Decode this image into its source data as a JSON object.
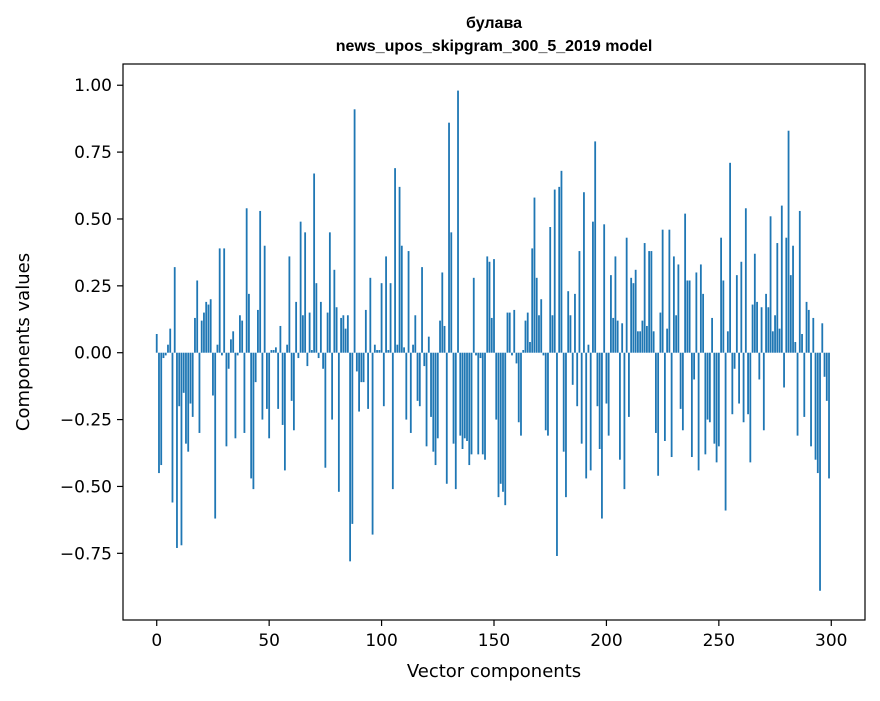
{
  "chart_data": {
    "type": "bar",
    "title": "булава",
    "subtitle": "news_upos_skipgram_300_5_2019 model",
    "xlabel": "Vector components",
    "ylabel": "Components values",
    "xlim": [
      -15,
      315
    ],
    "ylim": [
      -0.9993,
      1.0794
    ],
    "xticks": [
      0,
      50,
      100,
      150,
      200,
      250,
      300
    ],
    "yticks": [
      -0.75,
      -0.5,
      -0.25,
      0.0,
      0.25,
      0.5,
      0.75,
      1.0
    ],
    "xtick_labels": [
      "0",
      "50",
      "100",
      "150",
      "200",
      "250",
      "300"
    ],
    "ytick_labels": [
      "−0.75",
      "−0.50",
      "−0.25",
      "0.00",
      "0.25",
      "0.50",
      "0.75",
      "1.00"
    ],
    "grid": false,
    "bar_color": "#1f77b4",
    "values": [
      0.07,
      -0.45,
      -0.42,
      -0.02,
      -0.01,
      0.03,
      0.09,
      -0.56,
      0.32,
      -0.73,
      -0.2,
      -0.72,
      -0.15,
      -0.34,
      -0.37,
      -0.19,
      -0.24,
      0.13,
      0.27,
      -0.3,
      0.12,
      0.15,
      0.19,
      0.18,
      0.2,
      -0.16,
      -0.62,
      0.03,
      0.39,
      -0.01,
      0.39,
      -0.35,
      -0.06,
      0.05,
      0.08,
      -0.32,
      -0.01,
      0.14,
      0.12,
      -0.3,
      0.54,
      0.22,
      -0.47,
      -0.51,
      -0.11,
      0.16,
      0.53,
      -0.25,
      0.4,
      -0.21,
      -0.32,
      0.01,
      0.01,
      0.02,
      -0.21,
      0.1,
      -0.27,
      -0.44,
      0.03,
      0.36,
      -0.18,
      -0.29,
      0.19,
      -0.02,
      0.49,
      0.14,
      0.45,
      -0.05,
      0.15,
      0.01,
      0.67,
      0.26,
      -0.02,
      0.19,
      -0.06,
      -0.43,
      0.15,
      0.45,
      -0.25,
      0.31,
      0.17,
      -0.52,
      0.13,
      0.14,
      0.09,
      0.14,
      -0.78,
      -0.64,
      0.91,
      -0.07,
      -0.22,
      -0.11,
      -0.11,
      0.16,
      -0.21,
      0.28,
      -0.68,
      0.03,
      0.01,
      0.01,
      0.26,
      -0.2,
      0.36,
      0.01,
      0.26,
      -0.51,
      0.69,
      0.03,
      0.62,
      0.4,
      0.02,
      -0.25,
      0.38,
      -0.3,
      0.03,
      0.14,
      -0.18,
      -0.2,
      0.32,
      -0.05,
      -0.35,
      0.06,
      -0.24,
      -0.37,
      -0.42,
      -0.32,
      0.12,
      0.3,
      0.1,
      -0.49,
      0.86,
      0.45,
      -0.34,
      -0.51,
      0.98,
      -0.31,
      -0.36,
      -0.32,
      -0.33,
      -0.42,
      -0.38,
      0.28,
      -0.01,
      -0.38,
      -0.02,
      -0.38,
      -0.4,
      0.36,
      0.34,
      0.13,
      0.35,
      -0.25,
      -0.54,
      -0.49,
      -0.52,
      -0.57,
      0.15,
      0.15,
      -0.01,
      0.16,
      -0.04,
      -0.26,
      -0.31,
      0.01,
      0.12,
      0.15,
      0.04,
      0.39,
      0.58,
      0.28,
      0.14,
      0.2,
      -0.01,
      -0.29,
      -0.31,
      0.47,
      0.14,
      0.61,
      -0.76,
      0.62,
      0.68,
      -0.37,
      -0.54,
      0.23,
      0.14,
      -0.12,
      0.22,
      -0.2,
      0.38,
      -0.34,
      0.6,
      -0.47,
      0.03,
      -0.44,
      0.49,
      0.79,
      -0.2,
      -0.36,
      -0.62,
      0.48,
      -0.19,
      -0.31,
      0.29,
      0.13,
      0.36,
      0.12,
      -0.4,
      0.11,
      -0.51,
      0.43,
      -0.24,
      0.28,
      0.26,
      0.31,
      0.08,
      0.08,
      0.12,
      0.41,
      0.1,
      0.38,
      0.38,
      0.08,
      -0.3,
      -0.46,
      0.15,
      0.46,
      -0.33,
      0.09,
      0.46,
      -0.39,
      0.36,
      0.14,
      0.33,
      -0.21,
      -0.29,
      0.52,
      0.27,
      0.27,
      -0.39,
      -0.1,
      0.3,
      -0.44,
      0.33,
      0.22,
      -0.38,
      -0.25,
      -0.26,
      0.13,
      -0.34,
      -0.41,
      -0.35,
      0.43,
      0.27,
      -0.59,
      0.08,
      0.71,
      -0.23,
      -0.06,
      0.29,
      -0.19,
      0.34,
      -0.26,
      0.54,
      -0.23,
      -0.41,
      0.18,
      0.37,
      0.19,
      -0.1,
      0.17,
      -0.29,
      0.22,
      0.17,
      0.51,
      0.08,
      0.14,
      0.41,
      0.09,
      0.55,
      -0.13,
      0.43,
      0.83,
      0.29,
      0.4,
      0.04,
      -0.31,
      0.53,
      0.07,
      -0.24,
      0.19,
      0.16,
      -0.35,
      0.13,
      -0.4,
      -0.45,
      -0.89,
      0.11,
      -0.09,
      -0.18,
      -0.47
    ]
  }
}
